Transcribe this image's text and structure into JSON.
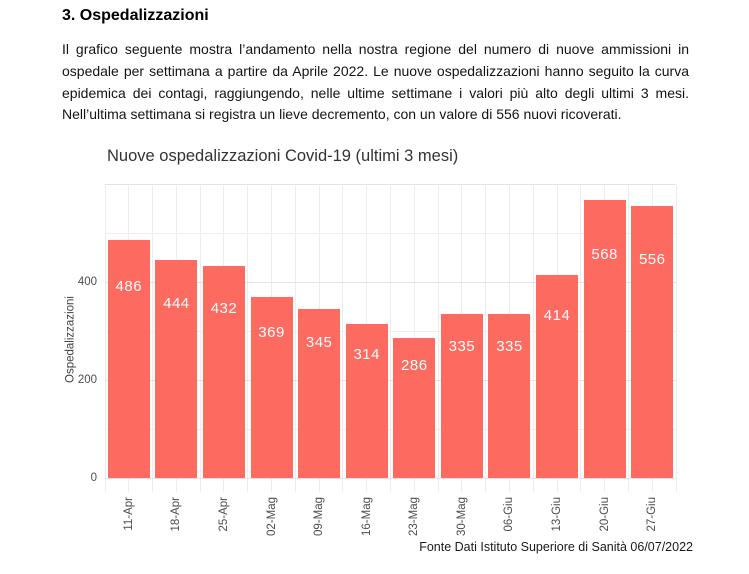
{
  "document": {
    "heading": "3. Ospedalizzazioni",
    "paragraph": "Il grafico seguente mostra l’andamento nella nostra regione del numero di nuove ammissioni in ospedale per settimana a partire da Aprile 2022. Le nuove ospedalizzazioni hanno seguito la curva epidemica dei contagi, raggiungendo, nelle ultime settimane i valori più alto degli ultimi 3 mesi. Nell’ultima settimana si registra un lieve decremento, con un valore di 556 nuovi ricoverati."
  },
  "chart_data": {
    "type": "bar",
    "title": "Nuove ospedalizzazioni Covid-19 (ultimi 3 mesi)",
    "xlabel": "",
    "ylabel": "Ospedalizzazioni",
    "categories": [
      "11-Apr",
      "18-Apr",
      "25-Apr",
      "02-Mag",
      "09-Mag",
      "16-Mag",
      "23-Mag",
      "30-Mag",
      "06-Giu",
      "13-Giu",
      "20-Giu",
      "27-Giu"
    ],
    "values": [
      486,
      444,
      432,
      369,
      345,
      314,
      286,
      335,
      335,
      414,
      568,
      556
    ],
    "yticks": [
      0,
      200,
      400
    ],
    "ylim": [
      0,
      600
    ],
    "grid": "on",
    "legend": "none",
    "bar_color": "#FC6A60",
    "label_color": "#FFFFFF",
    "caption": "Fonte Dati Istituto Superiore di Sanità 06/07/2022"
  },
  "colors": {
    "background": "#FFFFFF",
    "gridline_major": "#E3E3E3",
    "gridline_minor": "#EFEFEF",
    "axis_text": "#4D4D4D",
    "title_text": "#333333",
    "body_text": "#141414"
  }
}
